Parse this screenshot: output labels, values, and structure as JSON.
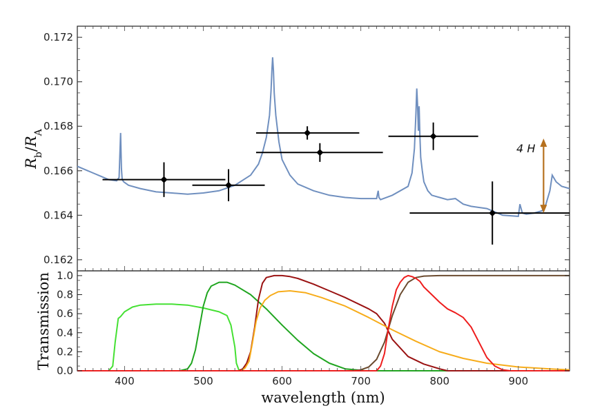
{
  "chart_data": [
    {
      "type": "line",
      "ylabel": {
        "main": "R",
        "sub1": "b",
        "sep": "/",
        "main2": "R",
        "sub2": "A"
      },
      "xlim": [
        340,
        965
      ],
      "ylim": [
        0.1615,
        0.1725
      ],
      "yticks": [
        0.162,
        0.164,
        0.166,
        0.168,
        0.17,
        0.172
      ],
      "ytick_labels": [
        "0.162",
        "0.164",
        "0.166",
        "0.168",
        "0.170",
        "0.172"
      ],
      "grid": false,
      "model_color": "#6f8fbf",
      "model_spectrum": {
        "x": [
          340,
          350,
          360,
          370,
          380,
          390,
          393,
          395,
          396,
          397,
          399,
          405,
          420,
          440,
          460,
          480,
          500,
          520,
          540,
          560,
          570,
          575,
          580,
          584,
          586,
          587,
          588,
          589,
          590,
          592,
          596,
          600,
          610,
          620,
          640,
          660,
          680,
          700,
          720,
          722,
          723,
          725,
          740,
          760,
          765,
          768,
          770,
          771,
          772,
          773,
          774,
          775,
          776,
          778,
          780,
          785,
          790,
          800,
          810,
          820,
          830,
          840,
          850,
          860,
          880,
          900,
          902,
          905,
          910,
          920,
          930,
          935,
          940,
          943,
          948,
          955,
          965
        ],
        "y": [
          0.1662,
          0.16605,
          0.1659,
          0.16575,
          0.1656,
          0.16555,
          0.1657,
          0.1677,
          0.1661,
          0.1656,
          0.1655,
          0.16535,
          0.1652,
          0.16505,
          0.165,
          0.16495,
          0.165,
          0.1651,
          0.16535,
          0.1658,
          0.1663,
          0.1668,
          0.1675,
          0.1685,
          0.1696,
          0.1705,
          0.1711,
          0.1705,
          0.1695,
          0.1685,
          0.1673,
          0.1665,
          0.1658,
          0.1654,
          0.1651,
          0.1649,
          0.1648,
          0.16475,
          0.16475,
          0.1651,
          0.1648,
          0.1647,
          0.1649,
          0.1653,
          0.1659,
          0.167,
          0.1686,
          0.1697,
          0.169,
          0.1678,
          0.1689,
          0.1676,
          0.1666,
          0.166,
          0.1655,
          0.1651,
          0.1649,
          0.1648,
          0.1647,
          0.16475,
          0.1645,
          0.1644,
          0.16435,
          0.1643,
          0.164,
          0.16395,
          0.1645,
          0.1641,
          0.16405,
          0.1641,
          0.1642,
          0.1645,
          0.1651,
          0.1658,
          0.1655,
          0.1653,
          0.1652
        ]
      },
      "data_points": [
        {
          "x": 450,
          "y": 0.1656,
          "x_lo": 372,
          "x_hi": 528,
          "y_err": 0.00078
        },
        {
          "x": 532,
          "y": 0.16535,
          "x_lo": 486,
          "x_hi": 578,
          "y_err": 0.00072
        },
        {
          "x": 632,
          "y": 0.1677,
          "x_lo": 567,
          "x_hi": 698,
          "y_err": 0.0003
        },
        {
          "x": 648,
          "y": 0.16682,
          "x_lo": 567,
          "x_hi": 728,
          "y_err": 0.00042
        },
        {
          "x": 792,
          "y": 0.16755,
          "x_lo": 735,
          "x_hi": 849,
          "y_err": 0.00062
        },
        {
          "x": 867,
          "y": 0.1641,
          "x_lo": 762,
          "x_hi": 965,
          "y_err": 0.00142
        }
      ],
      "scale_bar": {
        "label": "4 H",
        "x": 932,
        "y_from": 0.1641,
        "y_to": 0.16745,
        "color": "#b5701e"
      }
    },
    {
      "type": "line",
      "xlabel": "wavelength (nm)",
      "ylabel": "Transmission",
      "xlim": [
        340,
        965
      ],
      "ylim": [
        0,
        1.05
      ],
      "xticks": [
        400,
        500,
        600,
        700,
        800,
        900
      ],
      "xtick_labels": [
        "400",
        "500",
        "600",
        "700",
        "800",
        "900"
      ],
      "yticks": [
        0,
        0.2,
        0.4,
        0.6,
        0.8,
        1.0
      ],
      "ytick_labels": [
        "0.0",
        "0.2",
        "0.4",
        "0.6",
        "0.8",
        "1.0"
      ],
      "grid": false,
      "series": [
        {
          "color": "#44e032",
          "x": [
            340,
            380,
            385,
            388,
            392,
            395,
            400,
            410,
            420,
            440,
            460,
            480,
            500,
            510,
            520,
            530,
            535,
            540,
            542,
            545,
            550,
            965
          ],
          "y": [
            0,
            0,
            0.05,
            0.3,
            0.55,
            0.57,
            0.62,
            0.67,
            0.69,
            0.7,
            0.7,
            0.69,
            0.66,
            0.64,
            0.62,
            0.58,
            0.48,
            0.25,
            0.08,
            0.01,
            0,
            0
          ]
        },
        {
          "color": "#1fa51f",
          "x": [
            340,
            470,
            480,
            485,
            490,
            495,
            500,
            505,
            510,
            520,
            530,
            540,
            560,
            580,
            600,
            620,
            640,
            660,
            680,
            700,
            705,
            965
          ],
          "y": [
            0,
            0,
            0.02,
            0.08,
            0.22,
            0.45,
            0.68,
            0.82,
            0.89,
            0.93,
            0.93,
            0.9,
            0.8,
            0.65,
            0.48,
            0.32,
            0.18,
            0.08,
            0.02,
            0.005,
            0,
            0
          ]
        },
        {
          "color": "#9a1212",
          "x": [
            340,
            545,
            550,
            555,
            560,
            565,
            570,
            575,
            580,
            590,
            600,
            610,
            620,
            640,
            660,
            680,
            700,
            710,
            720,
            730,
            740,
            760,
            780,
            800,
            810,
            965
          ],
          "y": [
            0,
            0,
            0.02,
            0.08,
            0.2,
            0.45,
            0.75,
            0.92,
            0.98,
            1.0,
            1.0,
            0.99,
            0.97,
            0.91,
            0.84,
            0.77,
            0.69,
            0.65,
            0.6,
            0.5,
            0.33,
            0.15,
            0.07,
            0.02,
            0,
            0
          ]
        },
        {
          "color": "#f7ac1a",
          "x": [
            340,
            548,
            553,
            558,
            562,
            567,
            572,
            578,
            585,
            595,
            610,
            630,
            650,
            680,
            710,
            740,
            770,
            800,
            830,
            860,
            900,
            940,
            965
          ],
          "y": [
            0,
            0,
            0.03,
            0.1,
            0.28,
            0.52,
            0.66,
            0.74,
            0.79,
            0.83,
            0.84,
            0.82,
            0.77,
            0.68,
            0.56,
            0.43,
            0.31,
            0.2,
            0.13,
            0.08,
            0.04,
            0.02,
            0.01
          ]
        },
        {
          "color": "#6a4a2e",
          "x": [
            340,
            690,
            700,
            710,
            720,
            730,
            740,
            750,
            760,
            770,
            780,
            800,
            830,
            870,
            910,
            965
          ],
          "y": [
            0,
            0,
            0.01,
            0.04,
            0.12,
            0.3,
            0.58,
            0.8,
            0.93,
            0.98,
            0.995,
            1.0,
            1.0,
            1.0,
            1.0,
            1.0
          ]
        },
        {
          "color": "#ee1d1d",
          "x": [
            340,
            720,
            725,
            730,
            735,
            740,
            745,
            750,
            755,
            760,
            765,
            770,
            775,
            780,
            790,
            800,
            810,
            820,
            830,
            840,
            850,
            860,
            870,
            880,
            890,
            900,
            910,
            920,
            965
          ],
          "y": [
            0,
            0,
            0.05,
            0.18,
            0.45,
            0.68,
            0.85,
            0.93,
            0.98,
            1.0,
            0.99,
            0.97,
            0.94,
            0.88,
            0.8,
            0.72,
            0.65,
            0.61,
            0.56,
            0.46,
            0.3,
            0.14,
            0.05,
            0.01,
            0,
            0,
            0,
            0,
            0
          ]
        }
      ]
    }
  ]
}
